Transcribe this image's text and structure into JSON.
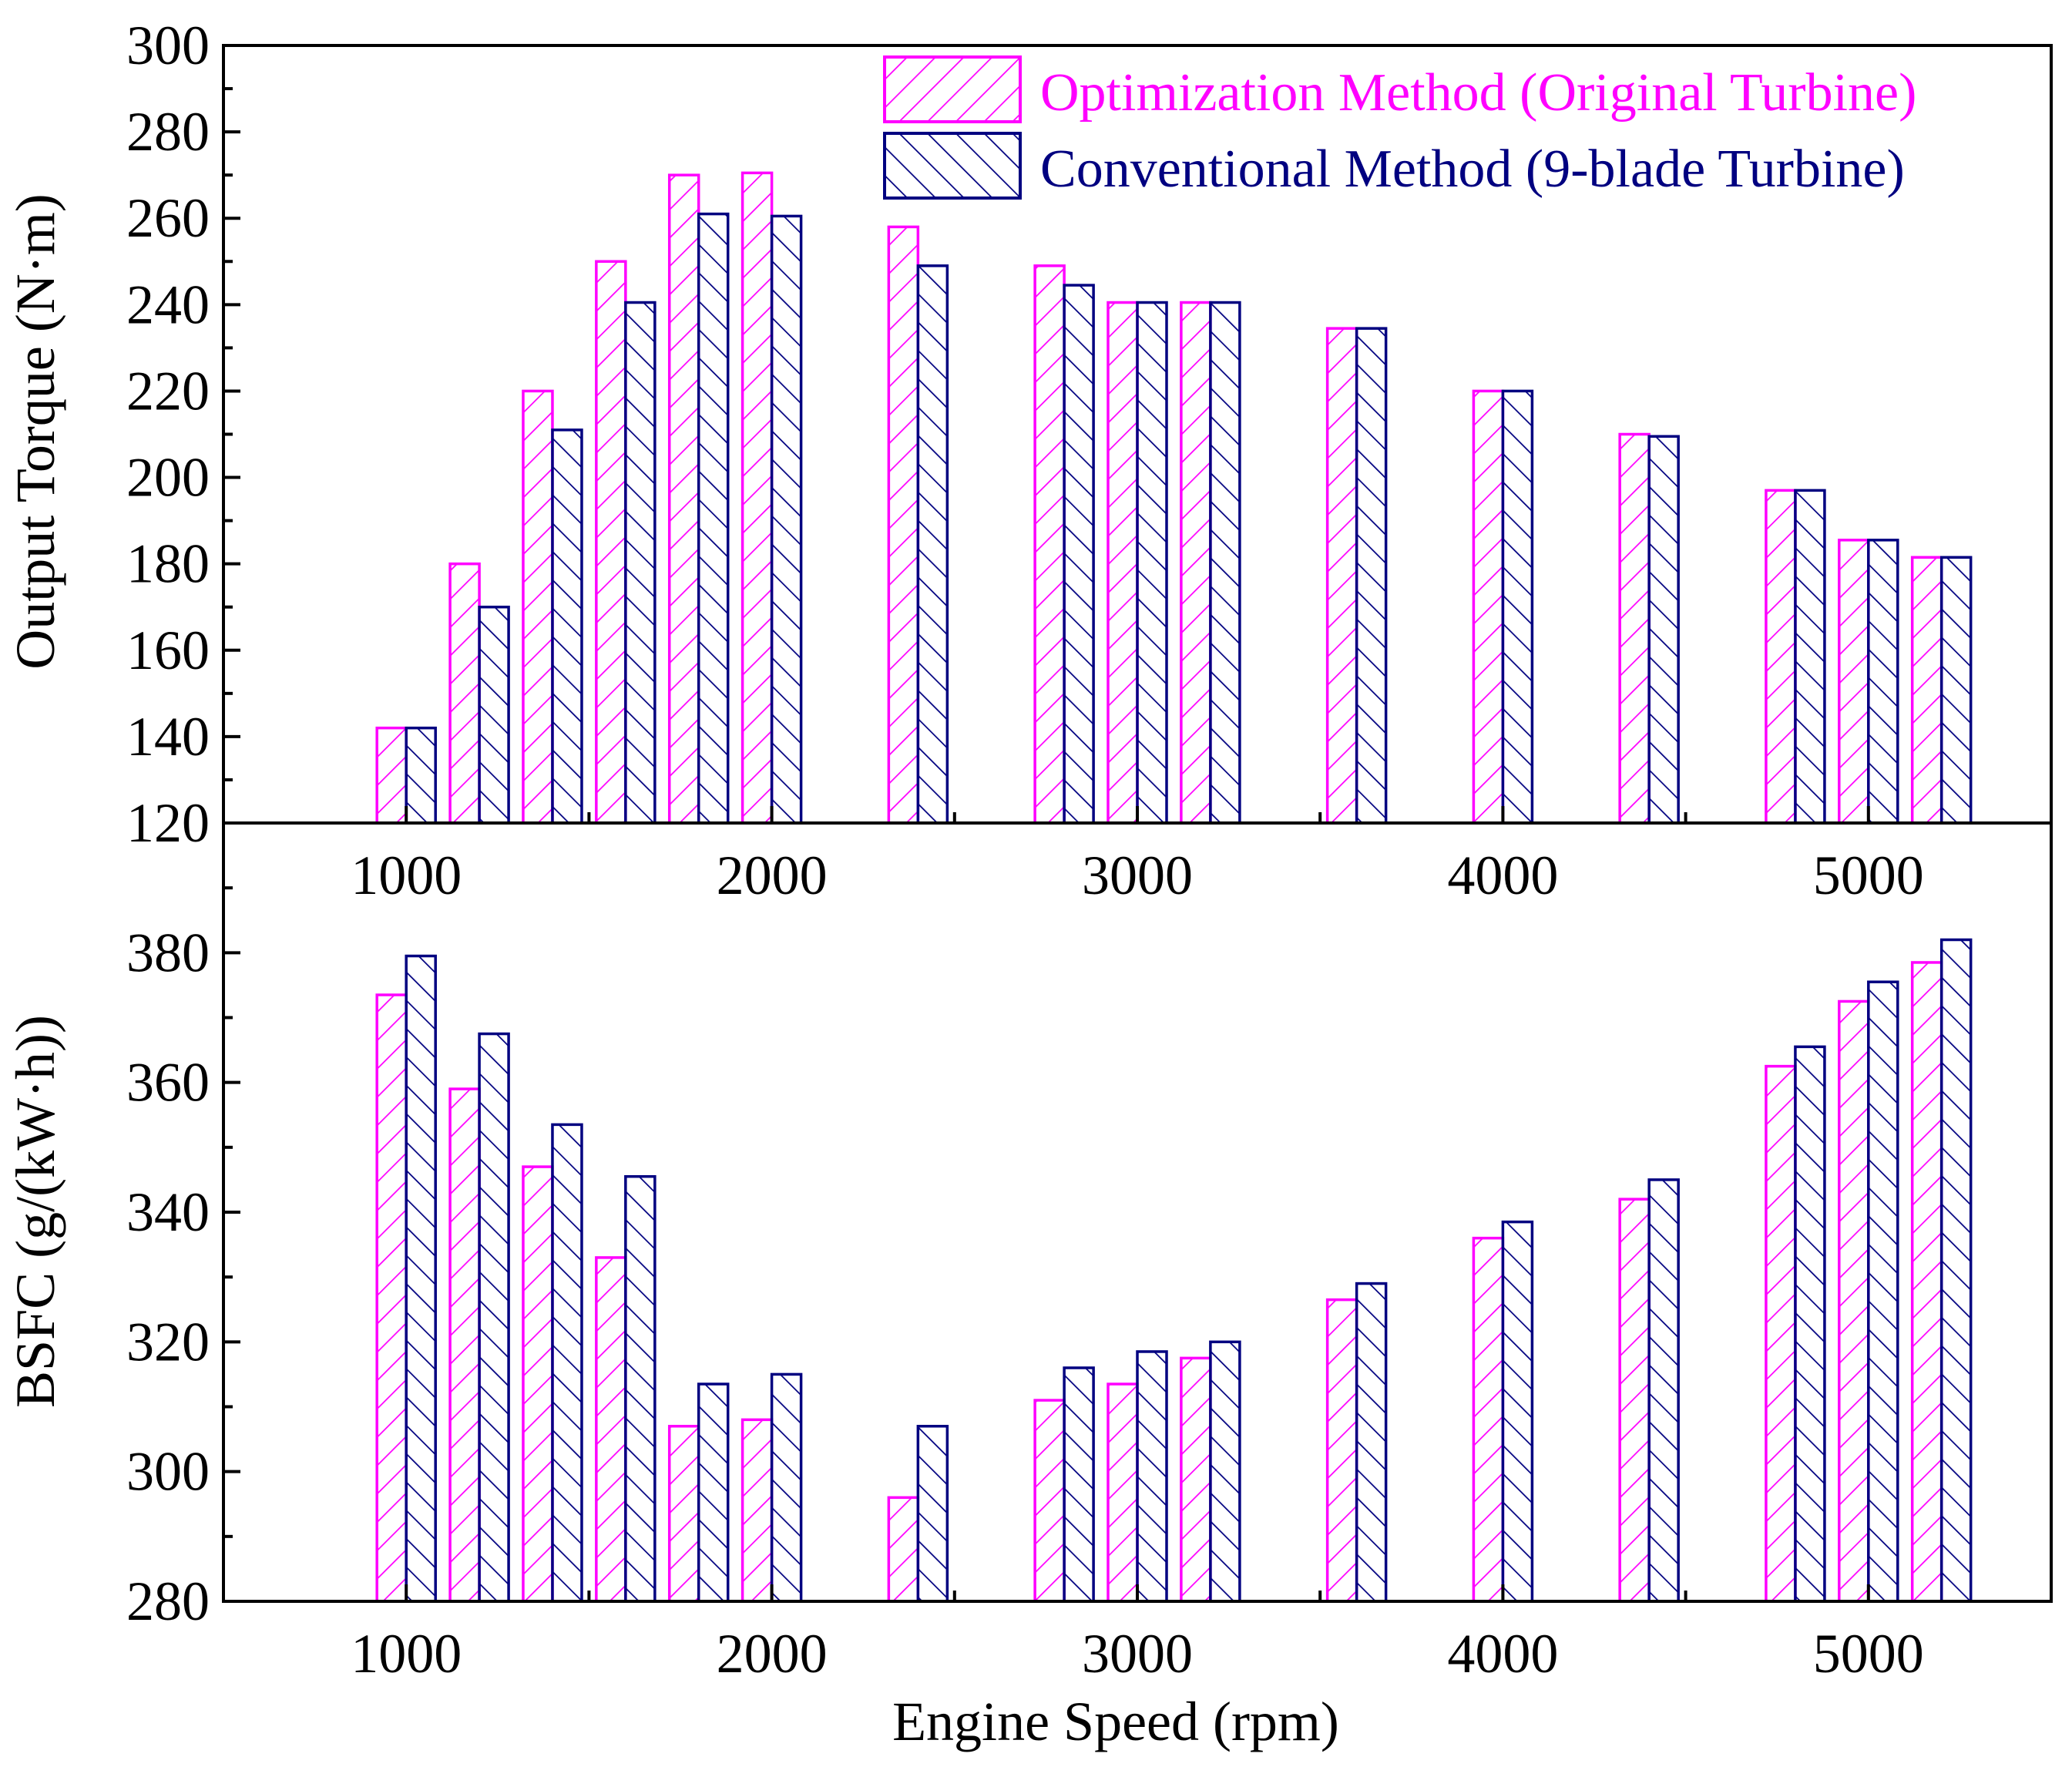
{
  "chart_data": {
    "type": "bar",
    "xlabel": "Engine Speed (rpm)",
    "xlim": [
      500,
      5500
    ],
    "x_ticks": [
      1000,
      2000,
      3000,
      4000,
      5000
    ],
    "x_tick_labels": [
      "1000",
      "2000",
      "3000",
      "4000",
      "5000"
    ],
    "engine_speeds": [
      1000,
      1200,
      1400,
      1600,
      1800,
      2000,
      2400,
      2800,
      3000,
      3200,
      3600,
      4000,
      4400,
      4800,
      5000,
      5200
    ],
    "legend": {
      "position": "top-right",
      "entries": [
        {
          "name": "Optimization Method (Original Turbine)",
          "color": "#ff00ff",
          "hatch": "forward"
        },
        {
          "name": "Conventional Method (9-blade Turbine)",
          "color": "#000080",
          "hatch": "backward"
        }
      ]
    },
    "panels": [
      {
        "id": "torque",
        "ylabel": "Output Torque (N·m)",
        "ylim": [
          120,
          300
        ],
        "y_ticks": [
          120,
          140,
          160,
          180,
          200,
          220,
          240,
          260,
          280,
          300
        ],
        "series": [
          {
            "name": "Optimization Method (Original Turbine)",
            "values": [
              142,
              180,
              220,
              250,
              270,
              270.5,
              258,
              249,
              240.5,
              240.5,
              234.5,
              220,
              210,
              197,
              185.5,
              181.5
            ]
          },
          {
            "name": "Conventional Method (9-blade Turbine)",
            "values": [
              142,
              170,
              211,
              240.5,
              261,
              260.5,
              249,
              244.5,
              240.5,
              240.5,
              234.5,
              220,
              209.5,
              197,
              185.5,
              181.5
            ]
          }
        ]
      },
      {
        "id": "bsfc",
        "ylabel": "BSFC (g/(kW·h))",
        "ylim": [
          280,
          400
        ],
        "y_ticks": [
          280,
          300,
          320,
          340,
          360,
          380
        ],
        "series": [
          {
            "name": "Optimization Method (Original Turbine)",
            "values": [
              373.5,
              359,
              347,
              333,
              307,
              308,
              296,
              311,
              313.5,
              317.5,
              326.5,
              336,
              342,
              362.5,
              372.5,
              378.5
            ]
          },
          {
            "name": "Conventional Method (9-blade Turbine)",
            "values": [
              379.5,
              367.5,
              353.5,
              345.5,
              313.5,
              315,
              307,
              316,
              318.5,
              320,
              329,
              338.5,
              345,
              365.5,
              375.5,
              382
            ]
          }
        ]
      }
    ]
  }
}
